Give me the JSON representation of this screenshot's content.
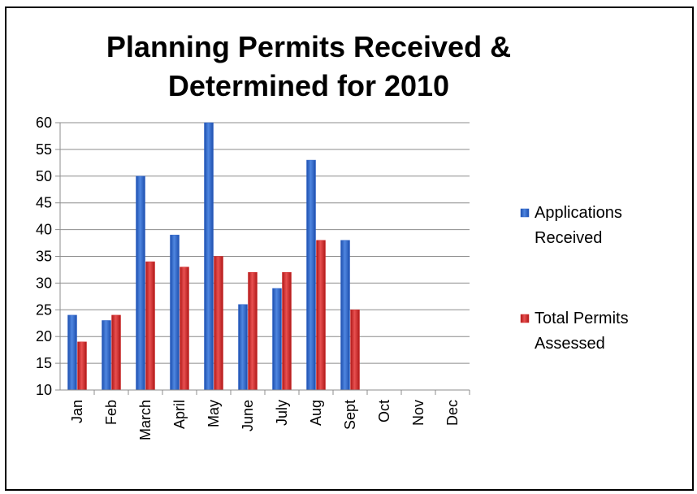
{
  "chart_data": {
    "type": "bar",
    "title_line1": "Planning Permits Received &",
    "title_line2": "Determined for 2010",
    "categories": [
      "Jan",
      "Feb",
      "March",
      "April",
      "May",
      "June",
      "July",
      "Aug",
      "Sept",
      "Oct",
      "Nov",
      "Dec"
    ],
    "series": [
      {
        "name_line1": "Applications",
        "name_line2": "Received",
        "values": [
          24,
          23,
          50,
          39,
          60,
          26,
          29,
          53,
          38,
          null,
          null,
          null
        ],
        "color": "#2f63c8"
      },
      {
        "name_line1": "Total Permits",
        "name_line2": "Assessed",
        "values": [
          19,
          24,
          34,
          33,
          35,
          32,
          32,
          38,
          25,
          null,
          null,
          null
        ],
        "color": "#d22a2a"
      }
    ],
    "ylim": [
      10,
      60
    ],
    "yticks": [
      10,
      15,
      20,
      25,
      30,
      35,
      40,
      45,
      50,
      55,
      60
    ],
    "grid": true,
    "legend_position": "right"
  }
}
